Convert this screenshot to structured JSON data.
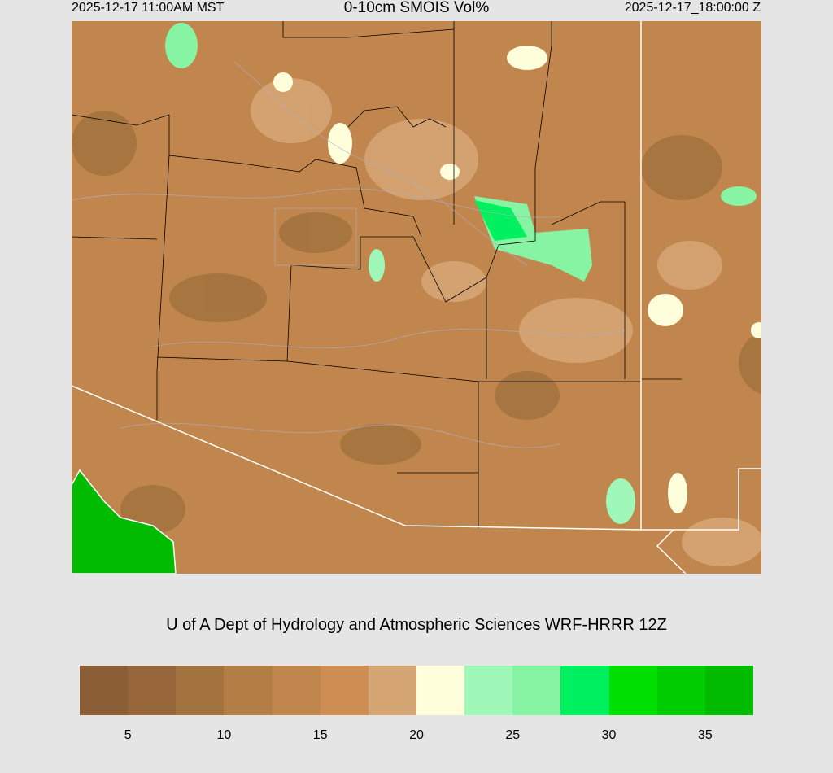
{
  "header": {
    "local_time": "2025-12-17 11:00AM MST",
    "title": "0-10cm SMOIS Vol%",
    "valid_time": "2025-12-17_18:00:00 Z"
  },
  "credit": "U of A Dept of Hydrology and Atmospheric Sciences WRF-HRRR 12Z",
  "colorbar": {
    "colors": [
      "#8a5f36",
      "#96663a",
      "#a3733f",
      "#b37e45",
      "#c1864d",
      "#ce8d53",
      "#d6a574",
      "#ffffdc",
      "#a0f8b8",
      "#86f4a2",
      "#00f060",
      "#00e000",
      "#00cc00",
      "#00bb00"
    ],
    "range": [
      2.5,
      37.5
    ],
    "labels": [
      "5",
      "10",
      "15",
      "20",
      "25",
      "30",
      "35"
    ],
    "label_values": [
      5,
      10,
      15,
      20,
      25,
      30,
      35
    ]
  },
  "map": {
    "background_color": "#c1864d",
    "water_color": "#00bb00",
    "boundary_color": "#ffffff",
    "county_line_color": "#000000",
    "contour_color": "#aab0c0"
  }
}
